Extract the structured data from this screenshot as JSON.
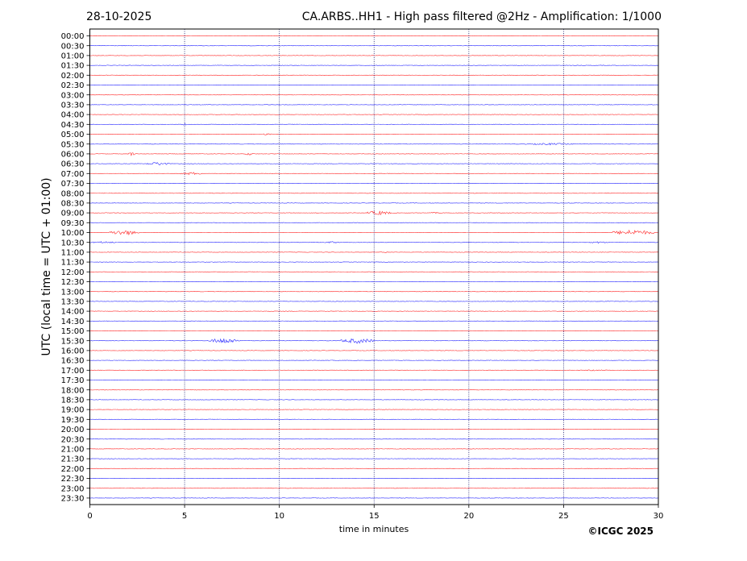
{
  "chart_data": {
    "type": "line",
    "date": "28-10-2025",
    "title": "CA.ARBS..HH1 - High pass filtered @2Hz - Amplification: 1/1000",
    "xlabel": "time in minutes",
    "ylabel": "UTC (local time = UTC + 01:00)",
    "xlim": [
      0,
      30
    ],
    "xticks": [
      0,
      5,
      10,
      15,
      20,
      25,
      30
    ],
    "vertical_gridlines_at": [
      5,
      10,
      15,
      20,
      25
    ],
    "grid": "vertical dotted",
    "y_labels": [
      "00:00",
      "00:30",
      "01:00",
      "01:30",
      "02:00",
      "02:30",
      "03:00",
      "03:30",
      "04:00",
      "04:30",
      "05:00",
      "05:30",
      "06:00",
      "06:30",
      "07:00",
      "07:30",
      "08:00",
      "08:30",
      "09:00",
      "09:30",
      "10:00",
      "10:30",
      "11:00",
      "11:30",
      "12:00",
      "12:30",
      "13:00",
      "13:30",
      "14:00",
      "14:30",
      "15:00",
      "15:30",
      "16:00",
      "16:30",
      "17:00",
      "17:30",
      "18:00",
      "18:30",
      "19:00",
      "19:30",
      "20:00",
      "20:30",
      "21:00",
      "21:30",
      "22:00",
      "22:30",
      "23:00",
      "23:30"
    ],
    "trace_colors": [
      "#ff0000",
      "#0000ff"
    ],
    "events": [
      {
        "row": "04:30",
        "start_min": 4.8,
        "end_min": 5.2,
        "amplitude": 0.25
      },
      {
        "row": "05:00",
        "start_min": 9.1,
        "end_min": 9.6,
        "amplitude": 0.25
      },
      {
        "row": "05:30",
        "start_min": 23.0,
        "end_min": 25.5,
        "amplitude": 0.2
      },
      {
        "row": "06:00",
        "start_min": 2.0,
        "end_min": 2.4,
        "amplitude": 0.4
      },
      {
        "row": "06:00",
        "start_min": 8.2,
        "end_min": 8.6,
        "amplitude": 0.3
      },
      {
        "row": "06:30",
        "start_min": 3.0,
        "end_min": 4.2,
        "amplitude": 0.35
      },
      {
        "row": "07:00",
        "start_min": 4.8,
        "end_min": 6.0,
        "amplitude": 0.3
      },
      {
        "row": "09:00",
        "start_min": 14.6,
        "end_min": 15.9,
        "amplitude": 0.45
      },
      {
        "row": "09:00",
        "start_min": 17.8,
        "end_min": 18.6,
        "amplitude": 0.15
      },
      {
        "row": "10:00",
        "start_min": 1.0,
        "end_min": 2.6,
        "amplitude": 0.55
      },
      {
        "row": "10:00",
        "start_min": 27.5,
        "end_min": 29.8,
        "amplitude": 0.55
      },
      {
        "row": "10:30",
        "start_min": 0.0,
        "end_min": 1.4,
        "amplitude": 0.2
      },
      {
        "row": "10:30",
        "start_min": 12.4,
        "end_min": 13.2,
        "amplitude": 0.2
      },
      {
        "row": "10:30",
        "start_min": 26.3,
        "end_min": 27.3,
        "amplitude": 0.2
      },
      {
        "row": "11:00",
        "start_min": 15.2,
        "end_min": 15.8,
        "amplitude": 0.12
      },
      {
        "row": "15:30",
        "start_min": 6.3,
        "end_min": 7.9,
        "amplitude": 0.6
      },
      {
        "row": "15:30",
        "start_min": 13.2,
        "end_min": 15.0,
        "amplitude": 0.55
      },
      {
        "row": "17:00",
        "start_min": 25.8,
        "end_min": 27.4,
        "amplitude": 0.12
      }
    ]
  },
  "footer": {
    "copyright": "©ICGC 2025"
  }
}
